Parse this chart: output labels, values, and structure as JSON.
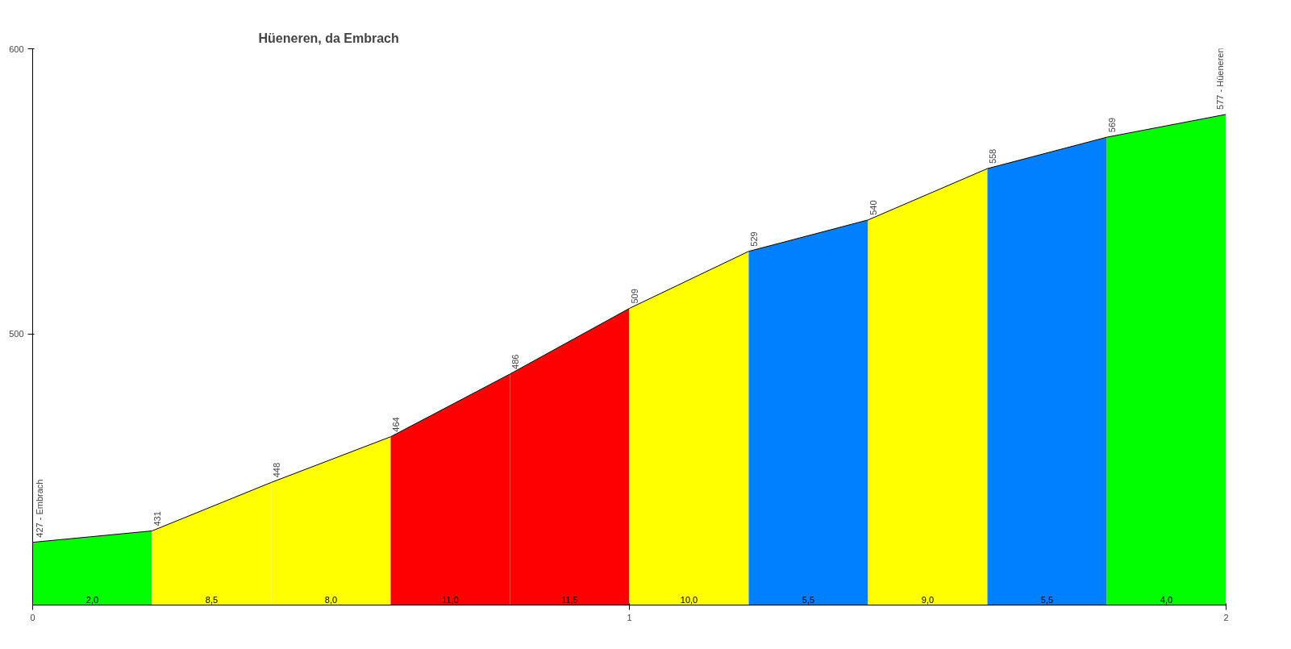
{
  "chart_data": {
    "type": "area",
    "title": "Hüeneren, da Embrach",
    "xlim": [
      0,
      2
    ],
    "xticks": [
      0,
      1,
      2
    ],
    "ylim": [
      405,
      600
    ],
    "yticks": [
      500,
      600
    ],
    "grid": false,
    "series": [
      {
        "color": "#00ff00",
        "x": [
          0,
          0.2
        ],
        "values": [
          427,
          431
        ]
      },
      {
        "color": "#ffff00",
        "x": [
          0.2,
          0.4
        ],
        "values": [
          431,
          448
        ]
      },
      {
        "color": "#ffff00",
        "x": [
          0.4,
          0.6
        ],
        "values": [
          448,
          464
        ]
      },
      {
        "color": "#ff0000",
        "x": [
          0.6,
          0.8
        ],
        "values": [
          464,
          486
        ]
      },
      {
        "color": "#ff0000",
        "x": [
          0.8,
          1.0
        ],
        "values": [
          486,
          509
        ]
      },
      {
        "color": "#ffff00",
        "x": [
          1.0,
          1.2
        ],
        "values": [
          509,
          529
        ]
      },
      {
        "color": "#0080ff",
        "x": [
          1.2,
          1.4
        ],
        "values": [
          529,
          540
        ]
      },
      {
        "color": "#ffff00",
        "x": [
          1.4,
          1.6
        ],
        "values": [
          540,
          558
        ]
      },
      {
        "color": "#0080ff",
        "x": [
          1.6,
          1.8
        ],
        "values": [
          558,
          569
        ]
      },
      {
        "color": "#00ff00",
        "x": [
          1.8,
          2.0
        ],
        "values": [
          569,
          577
        ]
      },
      {
        "type": "line",
        "color": "#000000",
        "x": [
          0,
          0.2,
          0.4,
          0.6,
          0.8,
          1.0,
          1.2,
          1.4,
          1.6,
          1.8,
          2.0
        ],
        "values": [
          427,
          431,
          448,
          464,
          486,
          509,
          529,
          540,
          558,
          569,
          577
        ],
        "value_labels": [
          "427 - Embrach",
          "431",
          "448",
          "464",
          "486",
          "509",
          "529",
          "540",
          "558",
          "569",
          "577 - Hüeneren"
        ]
      }
    ],
    "annotations": [
      "2,0",
      "8,5",
      "8,0",
      "11,0",
      "11,5",
      "10,0",
      "5,5",
      "9,0",
      "5,5",
      "4,0"
    ]
  }
}
